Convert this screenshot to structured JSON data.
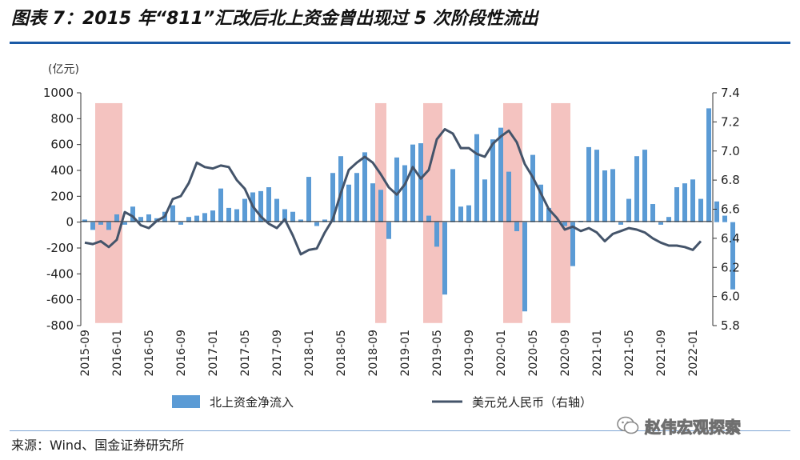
{
  "header": {
    "title": "图表 7：2015 年“811”汇改后北上资金曾出现过 5 次阶段性流出"
  },
  "footer": {
    "source": "来源：Wind、国金证券研究所",
    "watermark": "赵伟宏观探索",
    "watermark_icon": "wechat-icon"
  },
  "colors": {
    "bar": "#5b9bd5",
    "line": "#44546a",
    "highlight": "#f2b8b5",
    "rule": "#1a5aa6"
  },
  "chart_data": {
    "type": "bar+line",
    "title": "",
    "unit_label": "(亿元)",
    "x_ticks": [
      "2015-09",
      "2016-01",
      "2016-05",
      "2016-09",
      "2017-01",
      "2017-05",
      "2017-09",
      "2018-01",
      "2018-05",
      "2018-09",
      "2019-01",
      "2019-05",
      "2019-09",
      "2020-01",
      "2020-05",
      "2020-09",
      "2021-01",
      "2021-05",
      "2021-09",
      "2022-01"
    ],
    "y_left": {
      "min": -800,
      "max": 1000,
      "step": 200,
      "ticks": [
        "1000",
        "800",
        "600",
        "400",
        "200",
        "0",
        "-200",
        "-400",
        "-600",
        "-800"
      ]
    },
    "y_right": {
      "min": 5.8,
      "max": 7.4,
      "step": 0.2,
      "ticks": [
        "7.4",
        "7.2",
        "7.0",
        "6.8",
        "6.6",
        "6.4",
        "6.2",
        "6.0",
        "5.8"
      ]
    },
    "legend": [
      {
        "name": "北上资金净流入",
        "kind": "bar"
      },
      {
        "name": "美元兑人民币（右轴）",
        "kind": "line"
      }
    ],
    "series": [
      {
        "name": "北上资金净流入",
        "axis": "left",
        "start": "2015-09",
        "values": [
          20,
          -60,
          -20,
          -60,
          60,
          -20,
          120,
          40,
          60,
          30,
          80,
          130,
          -20,
          40,
          50,
          70,
          90,
          260,
          110,
          100,
          180,
          230,
          240,
          270,
          180,
          100,
          80,
          20,
          350,
          -30,
          20,
          380,
          510,
          290,
          380,
          540,
          300,
          250,
          -130,
          500,
          440,
          600,
          610,
          50,
          -190,
          -560,
          410,
          120,
          130,
          680,
          330,
          640,
          730,
          390,
          -70,
          -690,
          520,
          290,
          110,
          10,
          -30,
          -340,
          10,
          580,
          560,
          400,
          410,
          -20,
          180,
          510,
          560,
          140,
          -20,
          40,
          270,
          300,
          330,
          180,
          880,
          160,
          50,
          -520
        ]
      },
      {
        "name": "美元兑人民币（右轴）",
        "axis": "right",
        "start": "2015-09",
        "values": [
          6.37,
          6.36,
          6.38,
          6.34,
          6.39,
          6.58,
          6.55,
          6.49,
          6.47,
          6.52,
          6.55,
          6.67,
          6.69,
          6.78,
          6.92,
          6.89,
          6.88,
          6.9,
          6.89,
          6.8,
          6.74,
          6.62,
          6.55,
          6.5,
          6.47,
          6.53,
          6.42,
          6.29,
          6.32,
          6.33,
          6.44,
          6.53,
          6.71,
          6.87,
          6.92,
          6.96,
          6.92,
          6.84,
          6.75,
          6.7,
          6.77,
          6.89,
          6.81,
          6.87,
          7.08,
          7.15,
          7.12,
          7.02,
          7.02,
          6.98,
          6.96,
          7.05,
          7.1,
          7.14,
          7.06,
          6.91,
          6.82,
          6.71,
          6.6,
          6.54,
          6.46,
          6.48,
          6.45,
          6.47,
          6.44,
          6.38,
          6.43,
          6.45,
          6.47,
          6.46,
          6.44,
          6.4,
          6.37,
          6.35,
          6.35,
          6.34,
          6.32,
          6.38
        ]
      }
    ],
    "highlight_periods": [
      {
        "from": "2015-11",
        "to": "2016-01"
      },
      {
        "from": "2018-10",
        "to": "2018-10"
      },
      {
        "from": "2019-04",
        "to": "2019-05"
      },
      {
        "from": "2020-02",
        "to": "2020-03"
      },
      {
        "from": "2020-08",
        "to": "2020-09"
      }
    ]
  }
}
